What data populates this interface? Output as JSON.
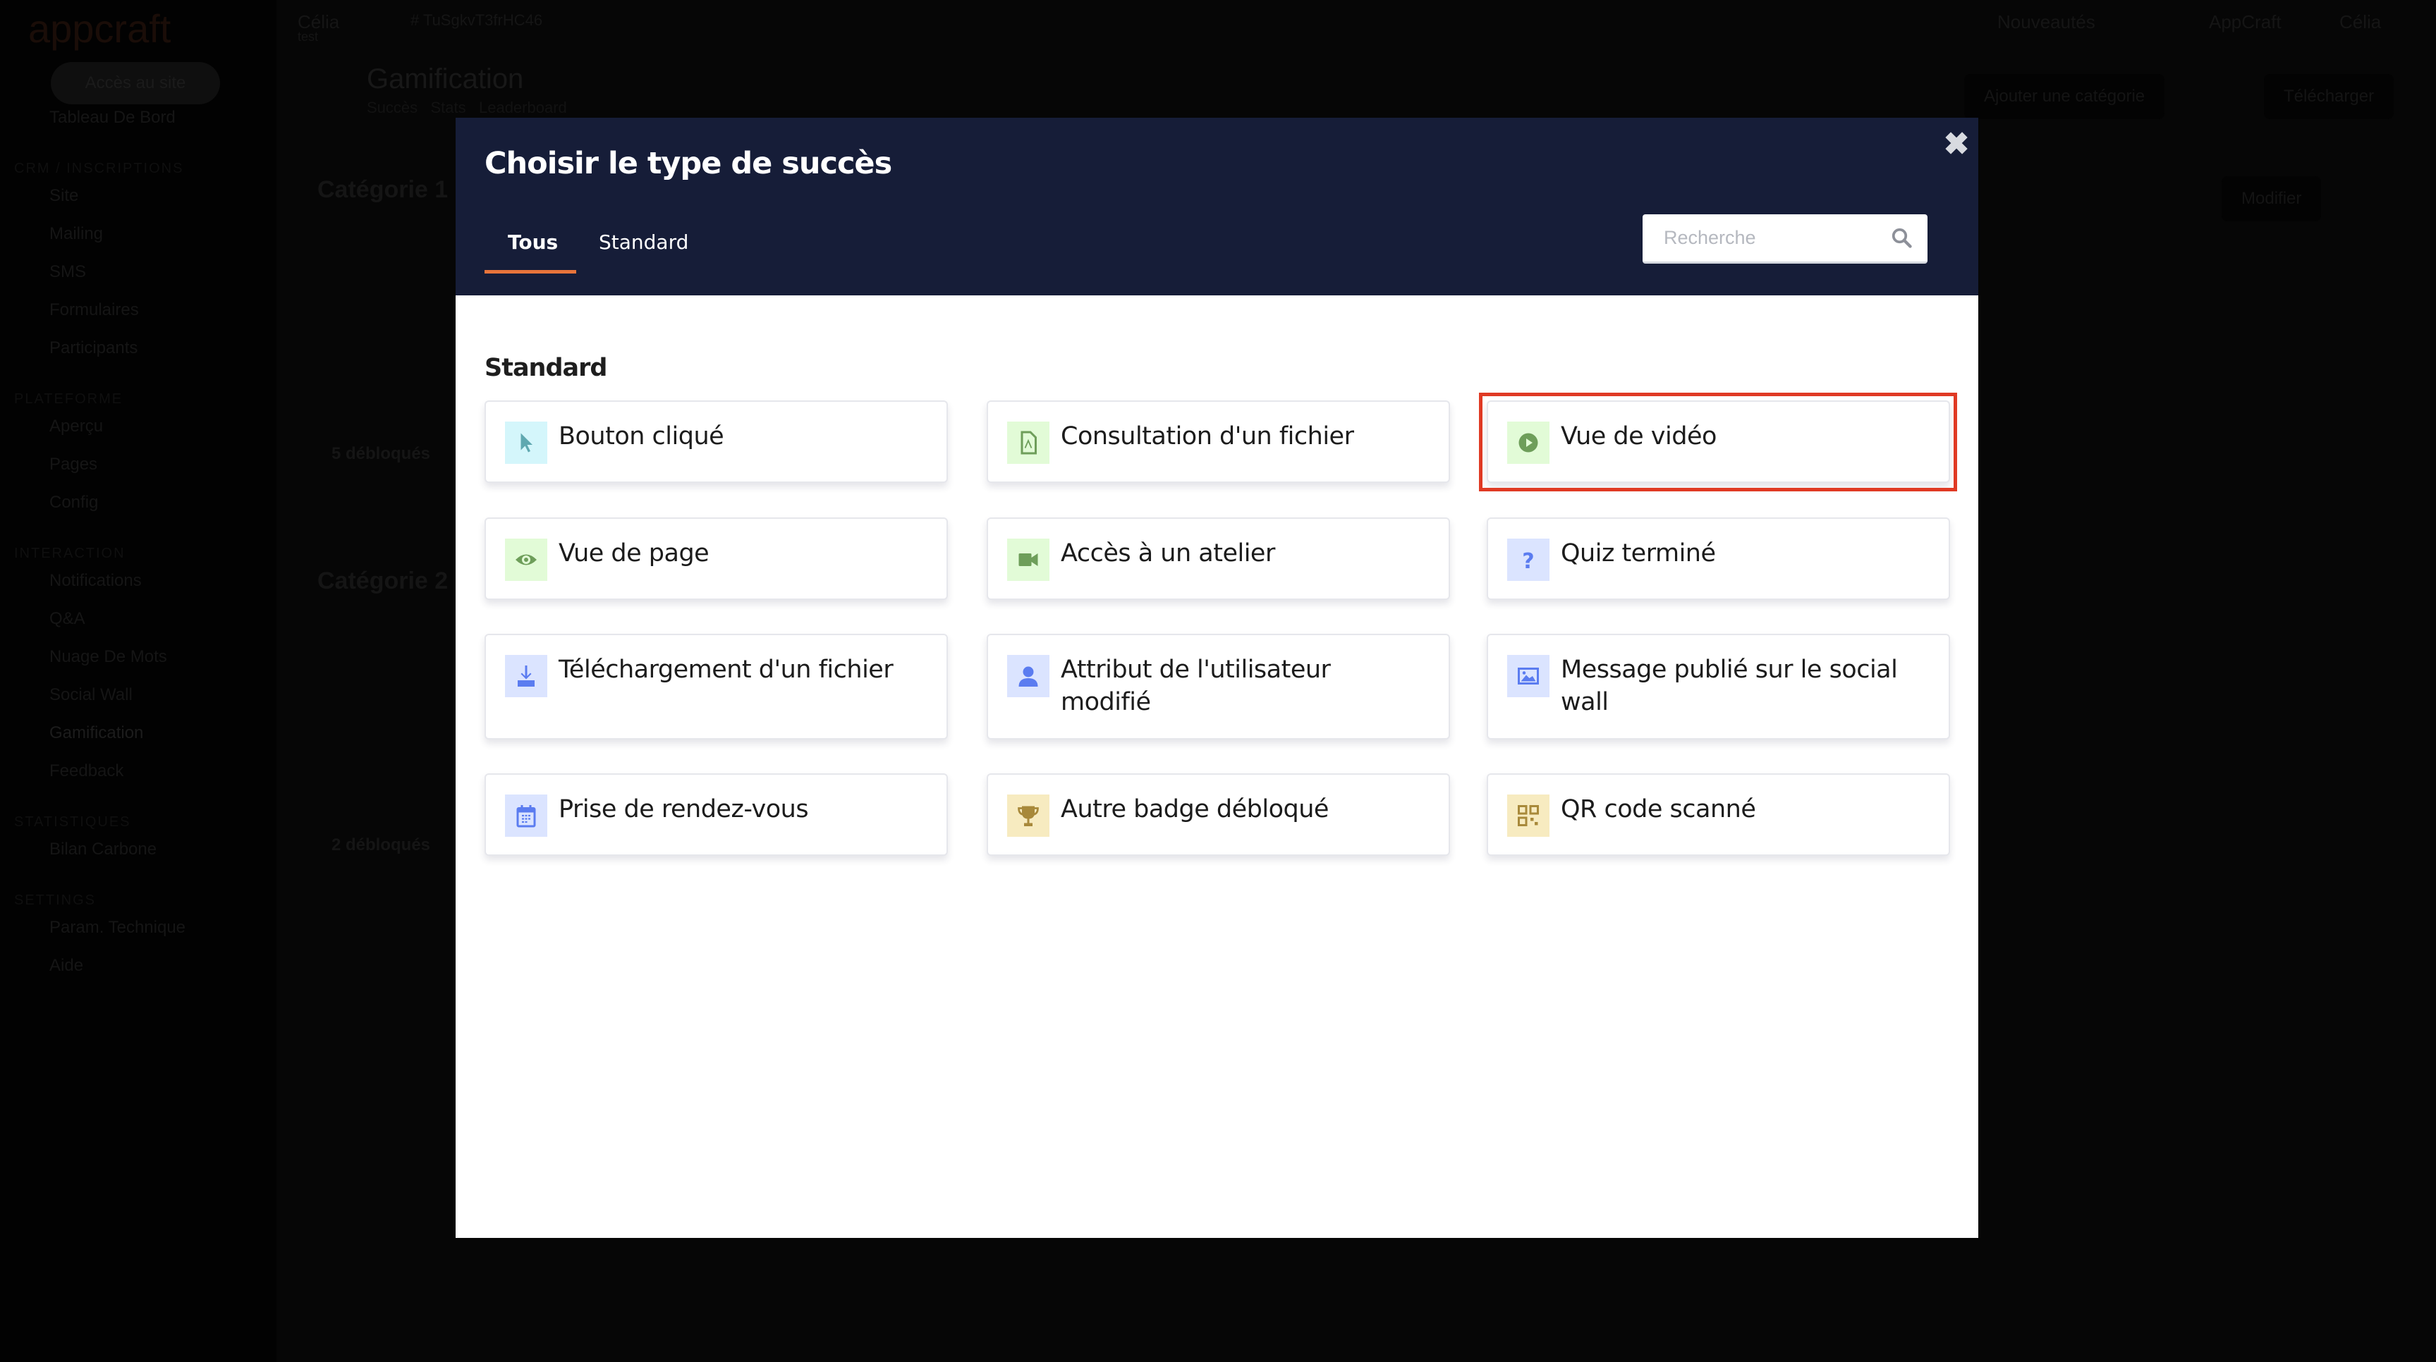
{
  "background": {
    "logo": "appcraft",
    "access_button": "Accès au site",
    "sidebar": [
      {
        "type": "item",
        "label": "Tableau De Bord"
      },
      {
        "type": "section",
        "label": "CRM / INSCRIPTIONS"
      },
      {
        "type": "item",
        "label": "Site"
      },
      {
        "type": "item",
        "label": "Mailing"
      },
      {
        "type": "item",
        "label": "SMS"
      },
      {
        "type": "item",
        "label": "Formulaires"
      },
      {
        "type": "item",
        "label": "Participants"
      },
      {
        "type": "section",
        "label": "PLATEFORME"
      },
      {
        "type": "item",
        "label": "Aperçu"
      },
      {
        "type": "item",
        "label": "Pages"
      },
      {
        "type": "item",
        "label": "Config"
      },
      {
        "type": "section",
        "label": "INTERACTION"
      },
      {
        "type": "item",
        "label": "Notifications"
      },
      {
        "type": "item",
        "label": "Q&A"
      },
      {
        "type": "item",
        "label": "Nuage De Mots"
      },
      {
        "type": "item",
        "label": "Social Wall"
      },
      {
        "type": "item",
        "label": "Gamification",
        "active": true
      },
      {
        "type": "item",
        "label": "Feedback"
      },
      {
        "type": "section",
        "label": "STATISTIQUES"
      },
      {
        "type": "item",
        "label": "Bilan Carbone"
      },
      {
        "type": "section",
        "label": "SETTINGS"
      },
      {
        "type": "item",
        "label": "Param. Technique"
      },
      {
        "type": "item",
        "label": "Aide"
      }
    ],
    "topbar": {
      "user": "Célia",
      "user_sub": "test",
      "event_id": "# TuSgkvT3frHC46",
      "news": "Nouveautés",
      "org": "AppCraft",
      "account": "Célia"
    },
    "page_title": "Gamification",
    "page_tabs": [
      "Succès",
      "Stats",
      "Leaderboard"
    ],
    "add_category": "Ajouter une catégorie",
    "download": "Télécharger",
    "edit": "Modifier",
    "categories": [
      {
        "title": "Catégorie 1",
        "unlocked": "5 débloqués"
      },
      {
        "title": "Catégorie 2",
        "unlocked": "2 débloqués"
      }
    ]
  },
  "modal": {
    "title": "Choisir le type de succès",
    "close_icon": "close-icon",
    "tabs": [
      {
        "label": "Tous",
        "active": true
      },
      {
        "label": "Standard",
        "active": false
      }
    ],
    "search": {
      "placeholder": "Recherche",
      "value": ""
    },
    "section_title": "Standard",
    "accent_color": "#e8743b",
    "highlight_color": "#e03a24",
    "items": [
      {
        "label": "Bouton cliqué",
        "icon": "cursor-icon",
        "bg": "#d4f6fb",
        "fg": "#5fa8b0"
      },
      {
        "label": "Consultation d'un fichier",
        "icon": "pdf-file-icon",
        "bg": "#e2fbd7",
        "fg": "#6e9e5a"
      },
      {
        "label": "Vue de vidéo",
        "icon": "play-circle-icon",
        "bg": "#e2fbd7",
        "fg": "#6e9e5a",
        "highlighted": true
      },
      {
        "label": "Vue de page",
        "icon": "eye-icon",
        "bg": "#e2fbd7",
        "fg": "#6e9e5a"
      },
      {
        "label": "Accès à un atelier",
        "icon": "video-camera-icon",
        "bg": "#e2fbd7",
        "fg": "#6e9e5a"
      },
      {
        "label": "Quiz terminé",
        "icon": "question-icon",
        "bg": "#dbe4ff",
        "fg": "#5b7cf0"
      },
      {
        "label": "Téléchargement d'un fichier",
        "icon": "download-icon",
        "bg": "#dbe4ff",
        "fg": "#5b7cf0"
      },
      {
        "label": "Attribut de l'utilisateur modifié",
        "icon": "user-icon",
        "bg": "#dbe4ff",
        "fg": "#5b7cf0"
      },
      {
        "label": "Message publié sur le social wall",
        "icon": "image-icon",
        "bg": "#dbe4ff",
        "fg": "#5b7cf0"
      },
      {
        "label": "Prise de rendez-vous",
        "icon": "calendar-icon",
        "bg": "#dbe4ff",
        "fg": "#5b7cf0"
      },
      {
        "label": "Autre badge débloqué",
        "icon": "trophy-icon",
        "bg": "#f7ebc0",
        "fg": "#a8893a"
      },
      {
        "label": "QR code scanné",
        "icon": "qr-code-icon",
        "bg": "#f7ebc0",
        "fg": "#a8893a"
      }
    ]
  }
}
